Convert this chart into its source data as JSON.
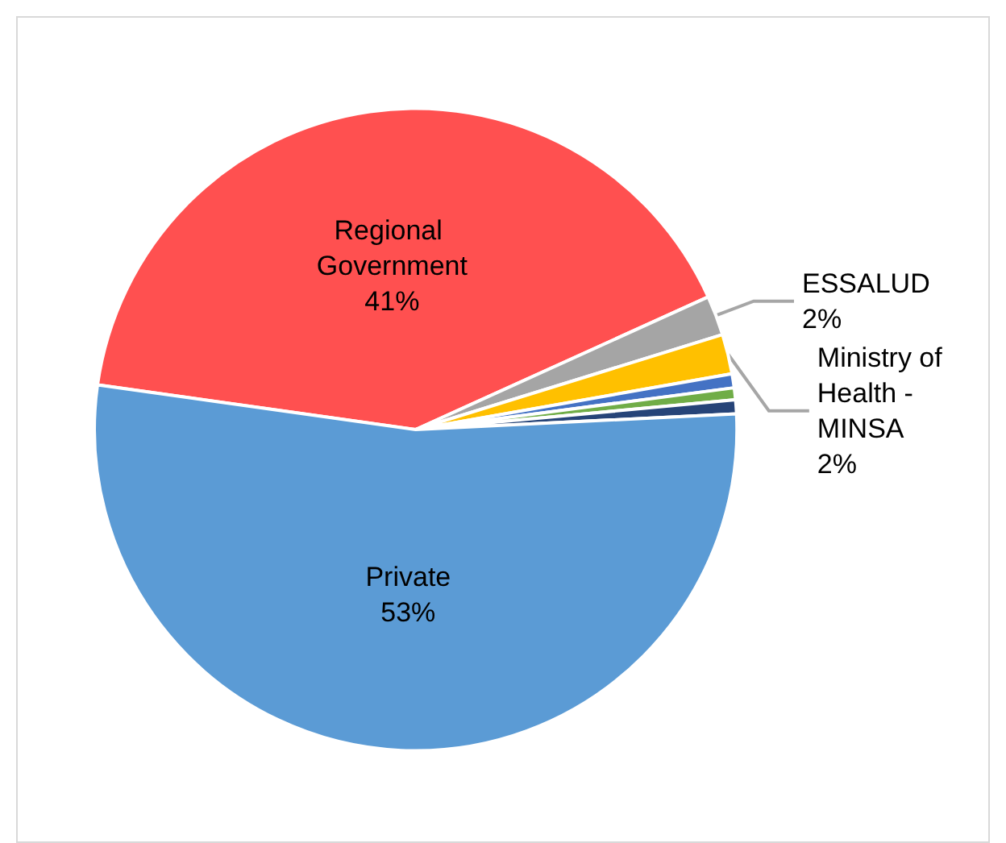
{
  "chart_data": {
    "type": "pie",
    "categories": [
      "Regional Government",
      "ESSALUD",
      "Ministry of Health - MINSA",
      null,
      null,
      null,
      "Private"
    ],
    "values": [
      41,
      2,
      2,
      0.7,
      0.6,
      0.7,
      53
    ],
    "colors": [
      "#ff5050",
      "#a5a5a5",
      "#ffc000",
      "#4472c4",
      "#70ad47",
      "#264478",
      "#5b9bd5"
    ],
    "value_labels": [
      "41%",
      "2%",
      "2%",
      null,
      null,
      null,
      "53%"
    ],
    "legend": false
  }
}
